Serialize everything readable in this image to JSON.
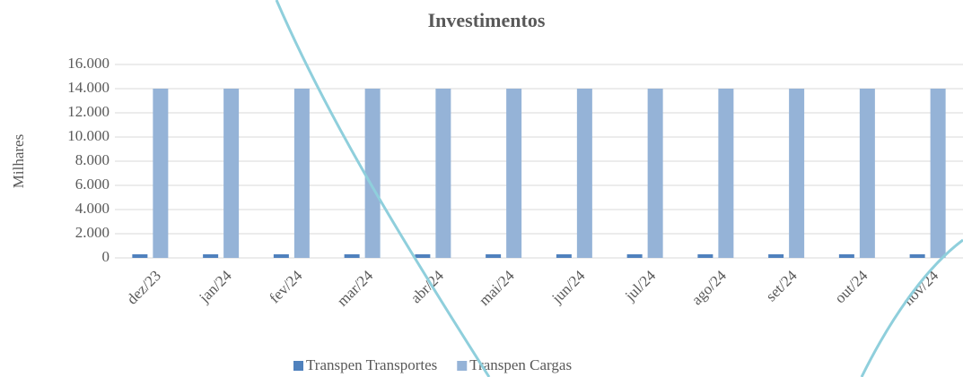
{
  "chart_data": {
    "type": "bar",
    "title": "Investimentos",
    "y_label": "Milhares",
    "categories": [
      "dez/23",
      "jan/24",
      "fev/24",
      "mar/24",
      "abr/24",
      "mai/24",
      "jun/24",
      "jul/24",
      "ago/24",
      "set/24",
      "out/24",
      "nov/24"
    ],
    "series": [
      {
        "name": "Transpen Transportes",
        "color": "#4f81bd",
        "values": [
          300,
          300,
          300,
          300,
          300,
          300,
          300,
          300,
          300,
          300,
          300,
          300
        ]
      },
      {
        "name": "Transpen Cargas",
        "color": "#95b3d7",
        "values": [
          14000,
          14000,
          14000,
          14000,
          14000,
          14000,
          14000,
          14000,
          14000,
          14000,
          14000,
          14000
        ]
      }
    ],
    "ylim": [
      0,
      16000
    ],
    "yticks": [
      {
        "value": 0,
        "label": "0"
      },
      {
        "value": 2000,
        "label": "2.000"
      },
      {
        "value": 4000,
        "label": "4.000"
      },
      {
        "value": 6000,
        "label": "6.000"
      },
      {
        "value": 8000,
        "label": "8.000"
      },
      {
        "value": 10000,
        "label": "10.000"
      },
      {
        "value": 12000,
        "label": "12.000"
      },
      {
        "value": 14000,
        "label": "14.000"
      },
      {
        "value": 16000,
        "label": "16.000"
      }
    ],
    "grid": true,
    "legend": "bottom"
  }
}
